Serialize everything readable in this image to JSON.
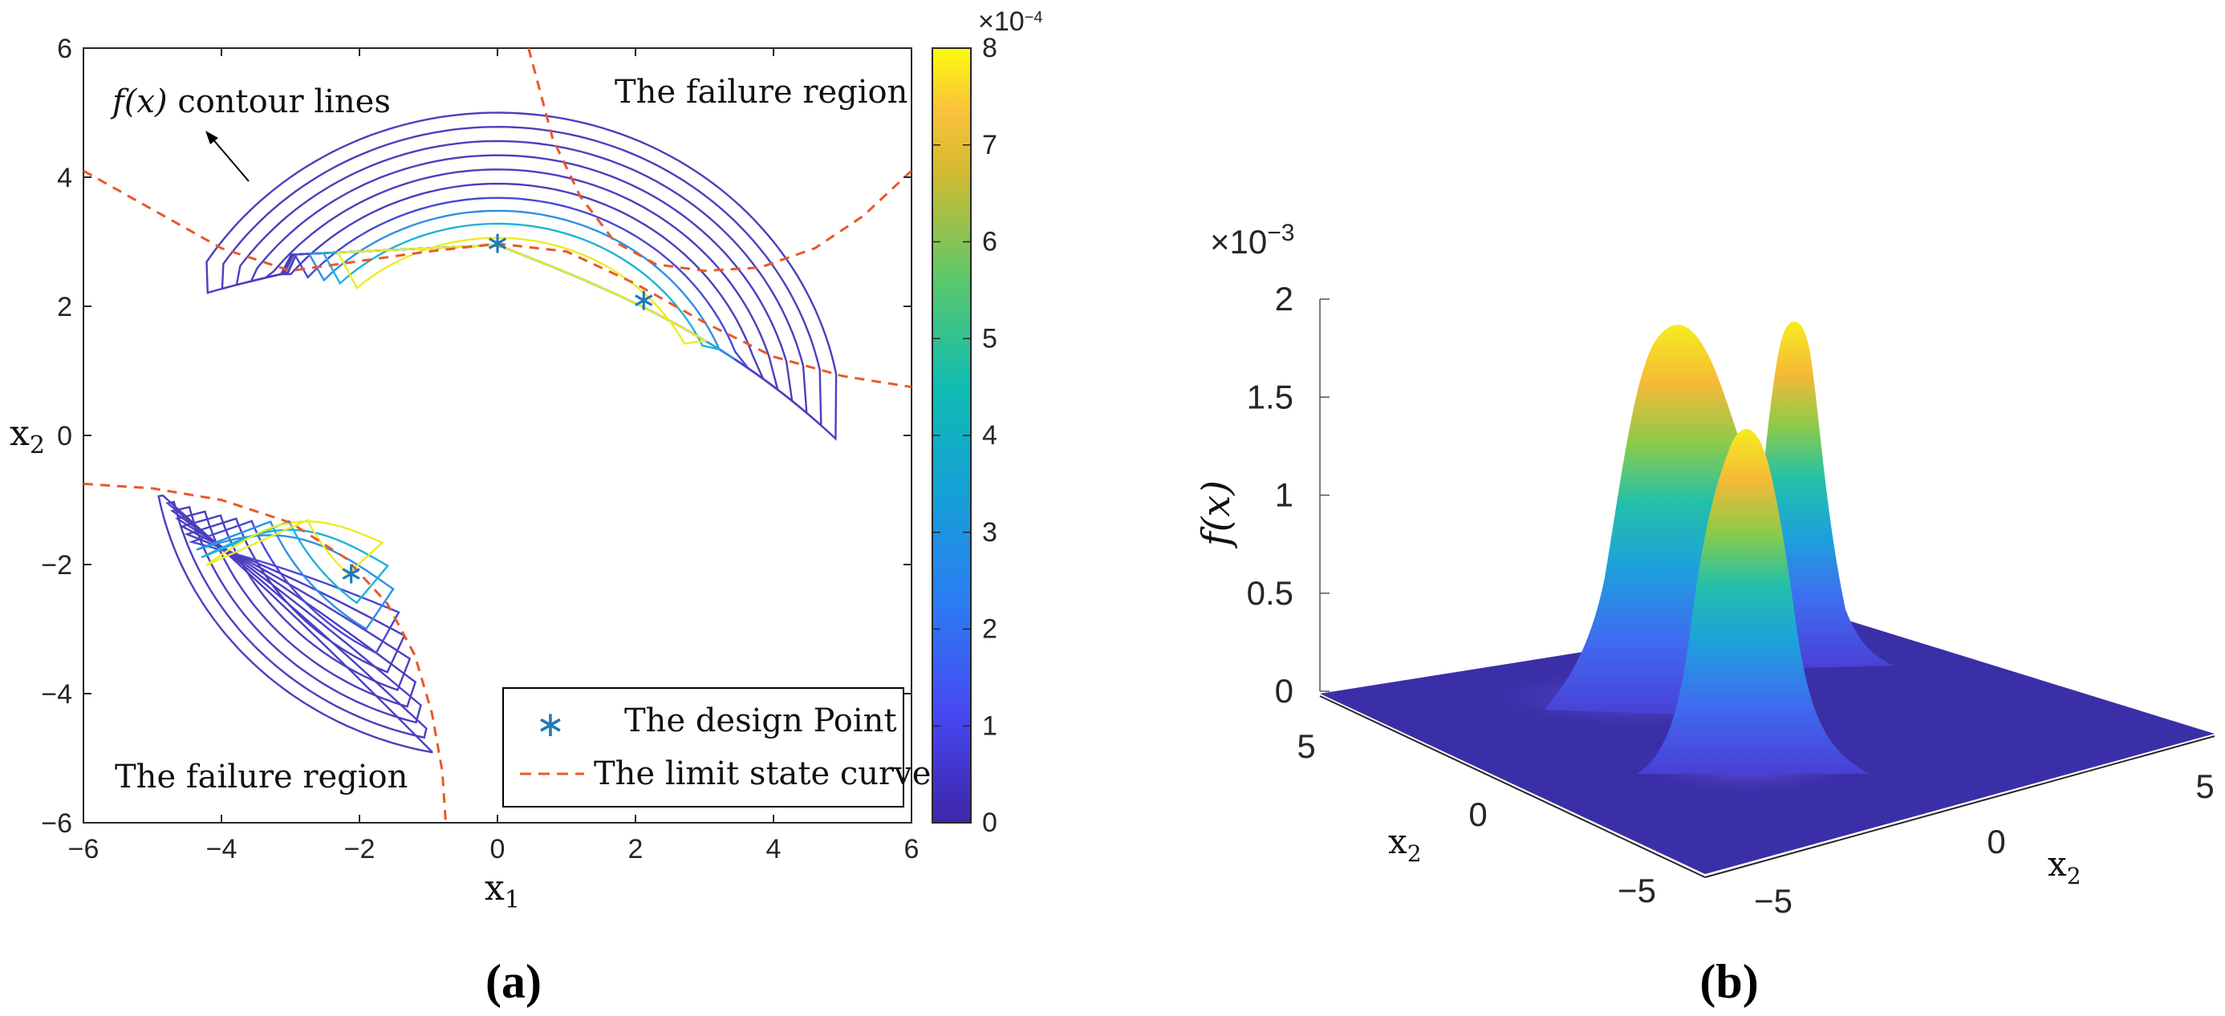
{
  "chart_data": [
    {
      "panel_label": "a",
      "type": "contour",
      "xlabel": "x",
      "xlabel_sub": "1",
      "ylabel": "x",
      "ylabel_sub": "2",
      "xlim": [
        -6,
        6
      ],
      "ylim": [
        -6,
        6
      ],
      "xticks": [
        "−6",
        "−4",
        "−2",
        "0",
        "2",
        "4",
        "6"
      ],
      "yticks": [
        "−6",
        "−4",
        "−2",
        "0",
        "2",
        "4",
        "6"
      ],
      "annotations": {
        "contour_label_func": "f",
        "contour_label_arg": "(x)",
        "contour_label_rest": "contour lines",
        "failure_region_top": "The failure region",
        "failure_region_bottom": "The failure region"
      },
      "design_points": [
        {
          "x": 0,
          "y": 3
        },
        {
          "x": 2.12,
          "y": 2.12
        },
        {
          "x": -2.12,
          "y": -2.12
        }
      ],
      "legend": {
        "placement": "bottom-right",
        "entries": [
          "The design Point",
          "The limit state curve"
        ]
      },
      "colorbar": {
        "exponent_label": "×10",
        "exponent": "−4",
        "range": [
          0,
          8
        ],
        "ticks": [
          "0",
          "1",
          "2",
          "3",
          "4",
          "5",
          "6",
          "7",
          "8"
        ]
      },
      "colors": {
        "limit_curve": "#e8592a",
        "design_point": "#1f7ab8",
        "contour_low": "#4b3fbf",
        "contour_high": "#f2e619"
      }
    },
    {
      "panel_label": "b",
      "type": "surface",
      "zlabel_func": "f",
      "zlabel_arg": "(x)",
      "exponent_label": "×10",
      "exponent": "−3",
      "zticks": [
        "0",
        "0.5",
        "1",
        "1.5",
        "2"
      ],
      "left_axis_label": "x",
      "left_axis_sub": "2",
      "right_axis_label": "x",
      "right_axis_sub": "2",
      "left_axis_ticks": [
        "5",
        "0",
        "−5"
      ],
      "right_axis_ticks": [
        "−5",
        "0",
        "5"
      ],
      "zlim": [
        0,
        2
      ],
      "colors": {
        "floor": "#3b2fa8",
        "peak": "#f9e21a"
      }
    }
  ]
}
